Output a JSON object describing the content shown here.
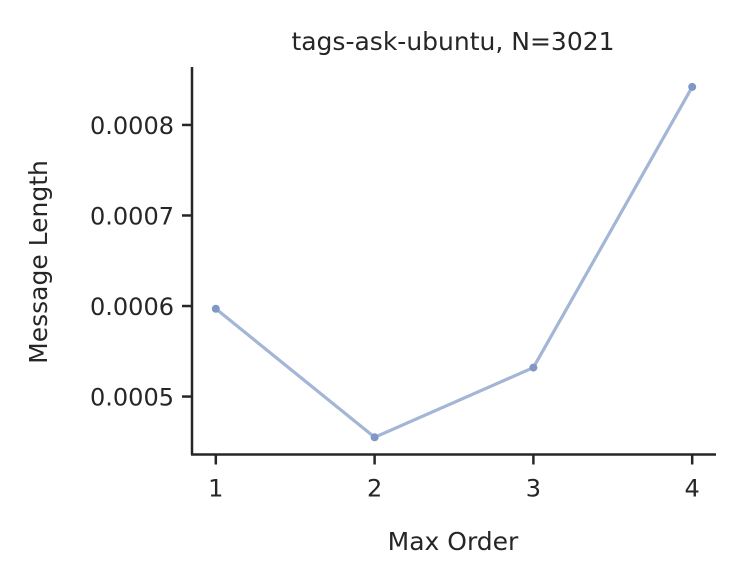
{
  "chart_data": {
    "type": "line",
    "title": "tags-ask-ubuntu, N=3021",
    "xlabel": "Max Order",
    "ylabel": "Message Length",
    "x": [
      1,
      2,
      3,
      4
    ],
    "xticks": [
      "1",
      "2",
      "3",
      "4"
    ],
    "yticks": [
      "0.0005",
      "0.0006",
      "0.0007",
      "0.0008"
    ],
    "ytick_values": [
      0.0005,
      0.0006,
      0.0007,
      0.0008
    ],
    "xlim": [
      0.85,
      4.15
    ],
    "ylim": [
      0.000436,
      0.000864
    ],
    "series": [
      {
        "values": [
          0.000597,
          0.000455,
          0.000532,
          0.000842
        ]
      }
    ],
    "line_color": "#a3b6d5",
    "marker_color": "#7f98c6",
    "axis_color": "#262626",
    "grid": false
  }
}
